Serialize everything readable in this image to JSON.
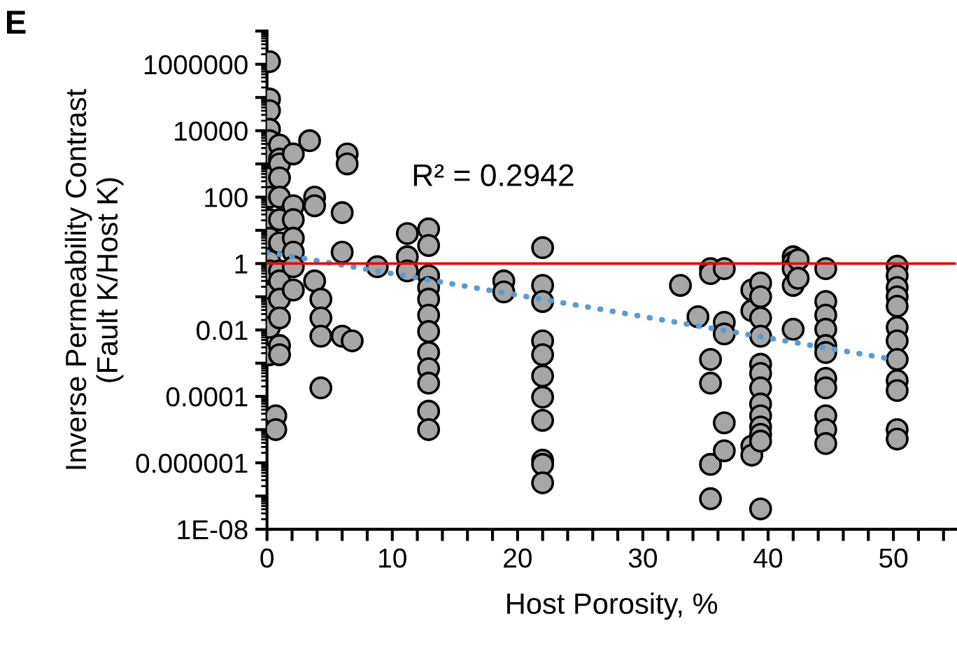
{
  "chart_data": {
    "type": "scatter",
    "xlabel": "Host Porosity, %",
    "ylabel": "Inverse Permeability Contrast\n(Fault K/Host K)",
    "log": "y",
    "grid": false,
    "marker": "circle",
    "xlim": [
      0,
      55
    ],
    "xticks": [
      0,
      {
        "value": 2,
        "label": null
      },
      {
        "value": 4,
        "label": null
      },
      {
        "value": 6,
        "label": null
      },
      {
        "value": 8,
        "label": null
      },
      10,
      {
        "value": 12,
        "label": null
      },
      {
        "value": 14,
        "label": null
      },
      {
        "value": 16,
        "label": null
      },
      {
        "value": 18,
        "label": null
      },
      20,
      {
        "value": 22,
        "label": null
      },
      {
        "value": 24,
        "label": null
      },
      {
        "value": 26,
        "label": null
      },
      {
        "value": 28,
        "label": null
      },
      30,
      {
        "value": 32,
        "label": null
      },
      {
        "value": 34,
        "label": null
      },
      {
        "value": 36,
        "label": null
      },
      {
        "value": 38,
        "label": null
      },
      40,
      {
        "value": 42,
        "label": null
      },
      {
        "value": 44,
        "label": null
      },
      {
        "value": 46,
        "label": null
      },
      {
        "value": 48,
        "label": null
      },
      50,
      {
        "value": 52,
        "label": null
      },
      {
        "value": 54,
        "label": null
      }
    ],
    "ylim": [
      1e-08,
      10000000.0
    ],
    "yticks": [
      {
        "value": 1e-08,
        "label": "1E-08"
      },
      {
        "value": 1e-07,
        "label": null
      },
      {
        "value": 1e-06,
        "label": "0.000001"
      },
      {
        "value": 1e-05,
        "label": null
      },
      {
        "value": 0.0001,
        "label": "0.0001"
      },
      {
        "value": 0.001,
        "label": null
      },
      {
        "value": 0.01,
        "label": "0.01"
      },
      {
        "value": 0.1,
        "label": null
      },
      1,
      {
        "value": 10,
        "label": null
      },
      100,
      {
        "value": 1000,
        "label": null
      },
      10000,
      {
        "value": 100000,
        "label": null
      },
      1000000,
      {
        "value": 10000000.0,
        "label": null
      }
    ],
    "ref_lines": [
      {
        "axis": "y",
        "value": 1,
        "color": "#ff0000",
        "line_style": "solid"
      }
    ],
    "annotations": [
      "R² = 0.2942",
      "E"
    ],
    "series": [
      {
        "color": "#a6a6a6",
        "x": [
          0.2,
          0.2,
          0.2,
          0.2,
          0.2,
          0.2,
          0.2,
          0.2,
          0.2,
          0.2,
          0.2,
          0.2,
          0.2,
          0.2,
          0.2,
          0.2,
          1.0,
          1.0,
          1.0,
          1.0,
          1.0,
          1.0,
          1.0,
          1.0,
          1.0,
          1.0,
          1.0,
          1.0,
          1.0,
          0.7,
          0.7,
          2.1,
          2.1,
          2.1,
          2.1,
          2.1,
          2.1,
          2.1,
          3.4,
          3.8,
          3.8,
          3.8,
          4.3,
          4.3,
          4.3,
          4.3,
          6.0,
          6.0,
          6.0,
          6.4,
          6.4,
          6.8,
          8.8,
          11.2,
          11.2,
          11.2,
          12.9,
          12.9,
          12.9,
          12.9,
          12.9,
          12.9,
          12.9,
          12.9,
          12.9,
          12.9,
          12.9,
          12.9,
          18.9,
          18.9,
          22.0,
          22.0,
          22.0,
          22.0,
          22.0,
          22.0,
          22.0,
          22.0,
          22.0,
          22.0,
          22.0,
          33.0,
          34.4,
          35.4,
          35.4,
          35.4,
          35.4,
          35.4,
          35.4,
          36.5,
          36.5,
          36.5,
          36.5,
          36.5,
          38.7,
          38.7,
          38.7,
          38.7,
          39.4,
          39.4,
          39.4,
          39.4,
          39.4,
          39.4,
          39.4,
          39.4,
          39.4,
          39.4,
          39.4,
          39.4,
          39.4,
          42.0,
          42.0,
          42.0,
          42.0,
          42.0,
          42.4,
          42.4,
          44.6,
          44.6,
          44.6,
          44.6,
          44.6,
          44.6,
          44.6,
          44.6,
          44.6,
          44.6,
          44.6,
          50.3,
          50.3,
          50.3,
          50.3,
          50.3,
          50.3,
          50.3,
          50.3,
          50.3,
          50.3,
          50.3,
          50.3
        ],
        "values": [
          1200000.0,
          90000.0,
          40000.0,
          11000.0,
          5000,
          2000,
          380,
          100,
          21,
          5.8,
          1.2,
          0.6,
          0.12,
          0.045,
          0.012,
          0.0018,
          3700,
          1400,
          1000,
          380,
          100,
          21,
          4.2,
          0.6,
          0.3,
          0.085,
          0.023,
          0.0034,
          0.0018,
          2.6e-05,
          1e-05,
          2000,
          55,
          21,
          5.8,
          2.2,
          0.8,
          0.16,
          5000,
          100,
          55,
          0.3,
          0.085,
          0.023,
          0.0065,
          0.00018,
          34,
          2.2,
          0.0065,
          2000,
          1000,
          0.0047,
          0.8,
          8,
          1.6,
          0.6,
          11,
          3.5,
          0.43,
          0.19,
          0.085,
          0.028,
          0.009,
          0.0021,
          0.00068,
          0.00025,
          3.6e-05,
          1e-05,
          0.3,
          0.14,
          3,
          0.22,
          0.072,
          0.0047,
          0.0018,
          0.00041,
          9.5e-05,
          1.9e-05,
          1.2e-06,
          9e-07,
          2.5e-07,
          0.22,
          0.025,
          0.7,
          0.5,
          0.0013,
          0.00025,
          9e-07,
          8.3e-08,
          0.7,
          0.017,
          0.0076,
          1.6e-05,
          2.3e-06,
          0.16,
          0.038,
          3.2e-06,
          1.7e-06,
          0.26,
          0.1,
          0.023,
          0.0065,
          0.00093,
          0.00049,
          0.00018,
          5.9e-05,
          2.6e-05,
          1.2e-05,
          7.2e-06,
          4.5e-06,
          4.1e-08,
          1.6,
          1.1,
          0.7,
          0.22,
          0.0105,
          1.3,
          0.36,
          0.7,
          0.072,
          0.028,
          0.0105,
          0.0034,
          0.0021,
          0.00035,
          0.00018,
          2.6e-05,
          1e-05,
          3.8e-06,
          0.83,
          0.43,
          0.19,
          0.1,
          0.052,
          0.012,
          0.0047,
          0.0013,
          0.0003,
          0.00015,
          1e-05,
          5.2e-06
        ]
      },
      {
        "type": "line",
        "color": "#5b9bd5",
        "line_style": "dotted",
        "marker": "none",
        "x": [
          0,
          50
        ],
        "values": [
          2.2,
          0.0013
        ]
      }
    ]
  }
}
